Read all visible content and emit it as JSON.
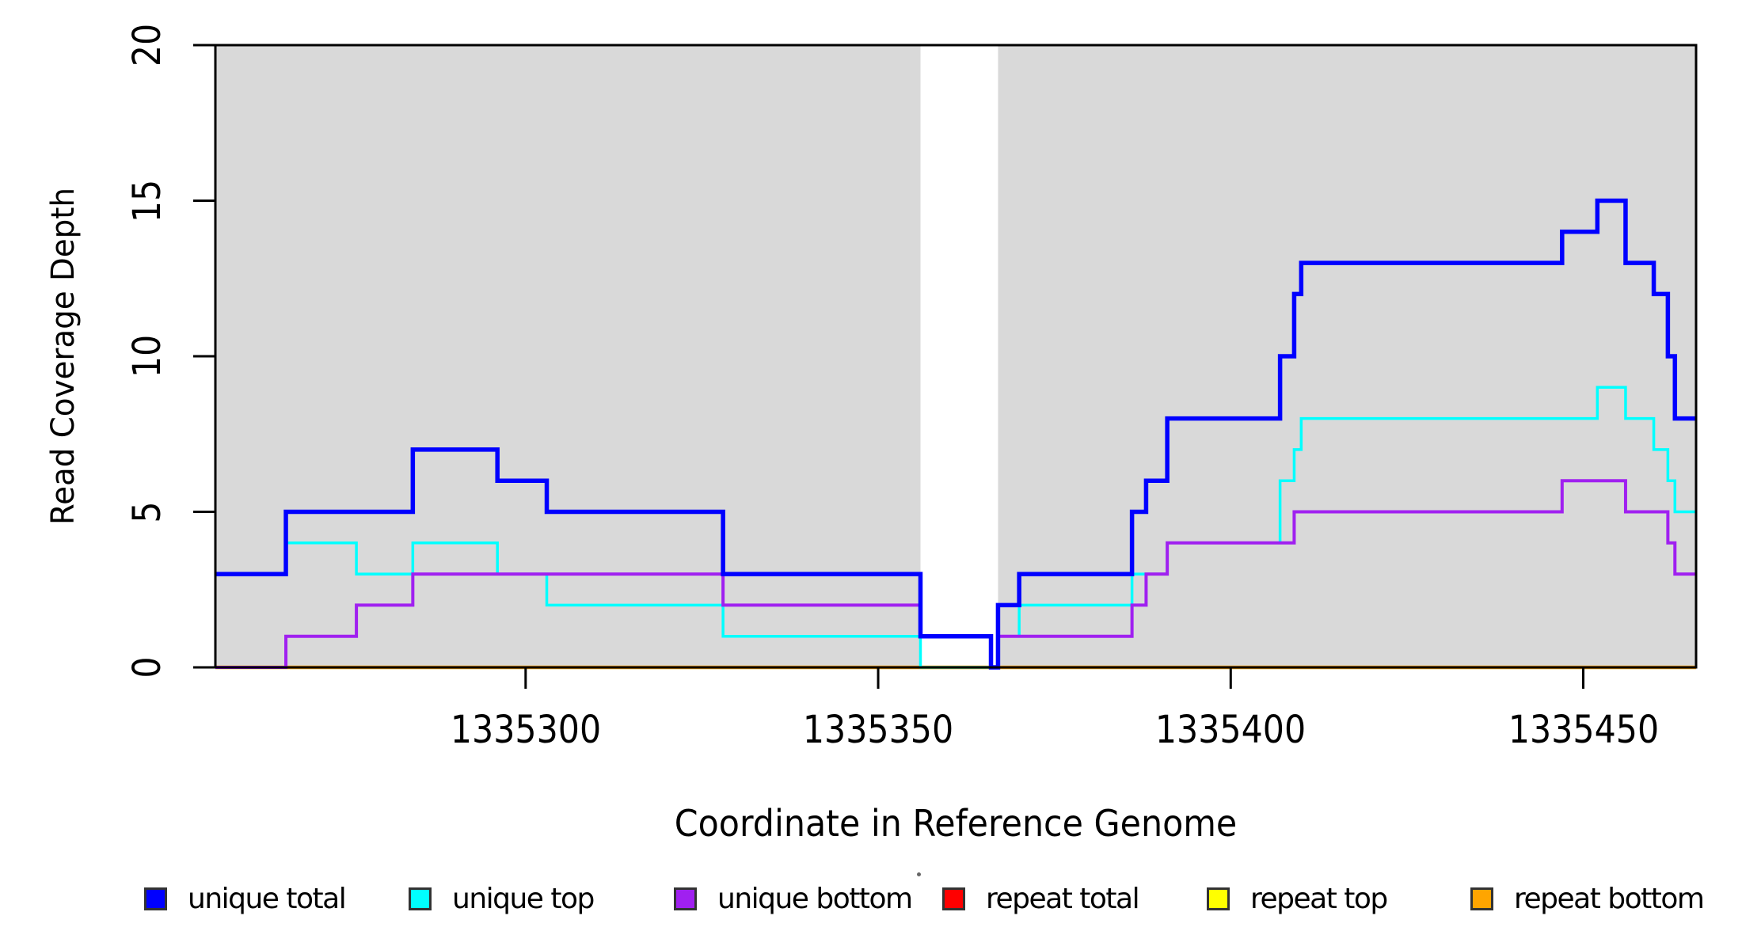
{
  "chart_data": {
    "type": "line",
    "subtype": "step",
    "title": "",
    "xlabel": "Coordinate in Reference Genome",
    "ylabel": "Read Coverage Depth",
    "xlim": [
      1335256,
      1335466
    ],
    "ylim": [
      0,
      20
    ],
    "x_ticks": [
      1335300,
      1335350,
      1335400,
      1335450
    ],
    "x_tick_labels": [
      "1335300",
      "1335350",
      "1335400",
      "1335450"
    ],
    "y_ticks": [
      0,
      5,
      10,
      15,
      20
    ],
    "y_tick_labels": [
      "0",
      "5",
      "10",
      "15",
      "20"
    ],
    "grid": false,
    "plot_background": "#ffffff",
    "shaded_regions": [
      {
        "from": 1335256,
        "to": 1335356,
        "color": "#d9d9d9"
      },
      {
        "from": 1335367,
        "to": 1335466,
        "color": "#d9d9d9"
      }
    ],
    "step_boundaries": [
      1335256,
      1335266,
      1335276,
      1335284,
      1335296,
      1335303,
      1335328,
      1335356,
      1335366,
      1335367,
      1335370,
      1335386,
      1335388,
      1335391,
      1335407,
      1335409,
      1335410,
      1335447,
      1335452,
      1335456,
      1335460,
      1335462,
      1335463,
      1335466
    ],
    "series": [
      {
        "name": "repeat total",
        "color": "#ff0000",
        "stroke_width": 3.5,
        "values": [
          0,
          0,
          0,
          0,
          0,
          0,
          0,
          0,
          0,
          0,
          0,
          0,
          0,
          0,
          0,
          0,
          0,
          0,
          0,
          0,
          0,
          0,
          0
        ]
      },
      {
        "name": "repeat top",
        "color": "#ffff00",
        "stroke_width": 3.5,
        "values": [
          0,
          0,
          0,
          0,
          0,
          0,
          0,
          0,
          0,
          0,
          0,
          0,
          0,
          0,
          0,
          0,
          0,
          0,
          0,
          0,
          0,
          0,
          0
        ]
      },
      {
        "name": "repeat bottom",
        "color": "#ffa500",
        "stroke_width": 4.5,
        "values": [
          0,
          0,
          0,
          0,
          0,
          0,
          0,
          0,
          0,
          0,
          0,
          0,
          0,
          0,
          0,
          0,
          0,
          0,
          0,
          0,
          0,
          0,
          0
        ]
      },
      {
        "name": "unique top",
        "color": "#00ffff",
        "stroke_width": 3.5,
        "values": [
          3,
          4,
          3,
          4,
          3,
          2,
          1,
          0,
          0,
          1,
          2,
          3,
          3,
          4,
          6,
          7,
          8,
          8,
          9,
          8,
          7,
          6,
          5
        ]
      },
      {
        "name": "unique bottom",
        "color": "#a020f0",
        "stroke_width": 4,
        "values": [
          0,
          1,
          2,
          3,
          3,
          3,
          2,
          1,
          0,
          1,
          1,
          2,
          3,
          4,
          4,
          5,
          5,
          6,
          6,
          5,
          5,
          4,
          3
        ]
      },
      {
        "name": "unique total",
        "color": "#0000ff",
        "stroke_width": 5.5,
        "values": [
          3,
          5,
          5,
          7,
          6,
          5,
          3,
          1,
          0,
          2,
          3,
          5,
          6,
          8,
          10,
          12,
          13,
          14,
          15,
          13,
          12,
          10,
          8
        ]
      }
    ],
    "legend": {
      "position": "bottom",
      "entries": [
        {
          "label": "unique total",
          "color": "#0000ff"
        },
        {
          "label": "unique top",
          "color": "#00ffff"
        },
        {
          "label": "unique bottom",
          "color": "#a020f0"
        },
        {
          "label": "repeat total",
          "color": "#ff0000"
        },
        {
          "label": "repeat top",
          "color": "#ffff00"
        },
        {
          "label": "repeat bottom",
          "color": "#ffa500"
        }
      ]
    },
    "axis_color": "#000000",
    "artifact_dot": "·"
  }
}
